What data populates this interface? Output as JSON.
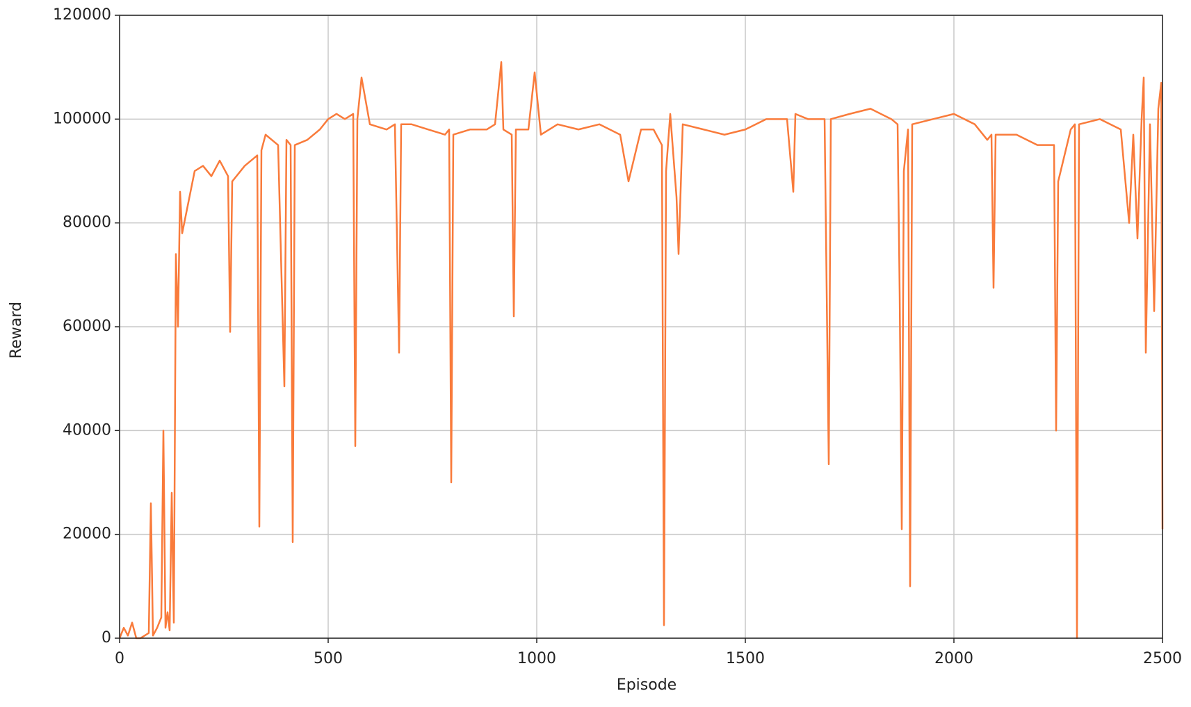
{
  "chart_data": {
    "type": "line",
    "xlabel": "Episode",
    "ylabel": "Reward",
    "x": [
      0,
      10,
      20,
      30,
      40,
      50,
      60,
      70,
      75,
      80,
      90,
      100,
      105,
      110,
      115,
      120,
      125,
      130,
      135,
      140,
      145,
      150,
      160,
      170,
      180,
      200,
      220,
      240,
      260,
      265,
      270,
      300,
      330,
      335,
      340,
      350,
      380,
      395,
      400,
      410,
      415,
      420,
      450,
      480,
      500,
      520,
      540,
      560,
      565,
      570,
      580,
      600,
      640,
      660,
      670,
      675,
      700,
      740,
      780,
      790,
      795,
      800,
      840,
      880,
      900,
      915,
      920,
      940,
      945,
      950,
      980,
      995,
      1010,
      1050,
      1100,
      1150,
      1200,
      1220,
      1250,
      1280,
      1300,
      1305,
      1310,
      1320,
      1335,
      1340,
      1350,
      1400,
      1450,
      1500,
      1550,
      1600,
      1615,
      1620,
      1650,
      1690,
      1700,
      1705,
      1750,
      1800,
      1850,
      1865,
      1870,
      1875,
      1880,
      1890,
      1895,
      1900,
      1950,
      2000,
      2050,
      2080,
      2090,
      2095,
      2100,
      2150,
      2200,
      2240,
      2245,
      2250,
      2280,
      2290,
      2295,
      2300,
      2350,
      2400,
      2420,
      2430,
      2440,
      2450,
      2455,
      2460,
      2470,
      2480,
      2490,
      2497,
      2500
    ],
    "series": [
      {
        "name": "Reward",
        "color": "#f97b3b",
        "values": [
          0,
          2000,
          500,
          3000,
          0,
          0,
          500,
          1000,
          26000,
          500,
          2000,
          4000,
          40000,
          2000,
          5000,
          1500,
          28000,
          3000,
          74000,
          60000,
          86000,
          78000,
          82000,
          86000,
          90000,
          91000,
          89000,
          92000,
          89000,
          59000,
          88000,
          91000,
          93000,
          21500,
          94000,
          97000,
          95000,
          48500,
          96000,
          95000,
          18500,
          95000,
          96000,
          98000,
          100000,
          101000,
          100000,
          101000,
          37000,
          100000,
          108000,
          99000,
          98000,
          99000,
          55000,
          99000,
          99000,
          98000,
          97000,
          98000,
          30000,
          97000,
          98000,
          98000,
          99000,
          111000,
          98000,
          97000,
          62000,
          98000,
          98000,
          109000,
          97000,
          99000,
          98000,
          99000,
          97000,
          88000,
          98000,
          98000,
          95000,
          2500,
          90000,
          101000,
          85000,
          74000,
          99000,
          98000,
          97000,
          98000,
          100000,
          100000,
          86000,
          101000,
          100000,
          100000,
          33500,
          100000,
          101000,
          102000,
          100000,
          99000,
          66000,
          21000,
          90000,
          98000,
          10000,
          99000,
          100000,
          101000,
          99000,
          96000,
          97000,
          67500,
          97000,
          97000,
          95000,
          95000,
          40000,
          88000,
          98000,
          99000,
          0,
          99000,
          100000,
          98000,
          80000,
          97000,
          77000,
          100000,
          108000,
          55000,
          99000,
          63000,
          102000,
          107000,
          21000
        ]
      }
    ],
    "xlim": [
      0,
      2500
    ],
    "xticks": [
      0,
      500,
      1000,
      1500,
      2000,
      2500
    ],
    "ylim": [
      0,
      120000
    ],
    "yticks": [
      0,
      20000,
      40000,
      60000,
      80000,
      100000,
      120000
    ],
    "grid": true
  }
}
